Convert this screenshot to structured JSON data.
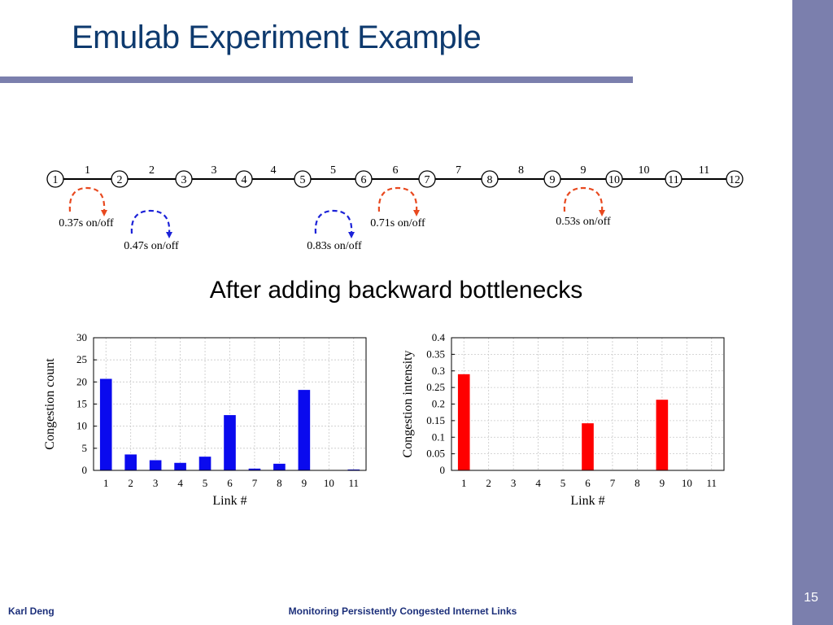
{
  "slide": {
    "title": "Emulab Experiment Example",
    "subtitle": "After adding backward bottlenecks",
    "footer_left": "Karl Deng",
    "footer_center": "Monitoring Persistently Congested Internet Links",
    "page_number": "15"
  },
  "topology": {
    "nodes": [
      "1",
      "2",
      "3",
      "4",
      "5",
      "6",
      "7",
      "8",
      "9",
      "10",
      "11",
      "12"
    ],
    "links": [
      "1",
      "2",
      "3",
      "4",
      "5",
      "6",
      "7",
      "8",
      "9",
      "10",
      "11"
    ],
    "flows": [
      {
        "label": "0.37s on/off",
        "on_link": 1,
        "color": "#e8491f"
      },
      {
        "label": "0.47s on/off",
        "on_link": 2,
        "color": "#1c22d8"
      },
      {
        "label": "0.83s on/off",
        "on_link": 5,
        "color": "#1c22d8"
      },
      {
        "label": "0.71s on/off",
        "on_link": 6,
        "color": "#e8491f"
      },
      {
        "label": "0.53s on/off",
        "on_link": 9,
        "color": "#e8491f"
      }
    ]
  },
  "chart_data": [
    {
      "type": "bar",
      "categories": [
        "1",
        "2",
        "3",
        "4",
        "5",
        "6",
        "7",
        "8",
        "9",
        "10",
        "11"
      ],
      "values": [
        20.7,
        3.6,
        2.3,
        1.7,
        3.1,
        12.5,
        0.4,
        1.5,
        18.2,
        0,
        0.2
      ],
      "xlabel": "Link #",
      "ylabel": "Congestion count",
      "ylim": [
        0,
        30
      ],
      "yticks": [
        "0",
        "5",
        "10",
        "15",
        "20",
        "25",
        "30"
      ],
      "grid": true,
      "color": "#0a0aee"
    },
    {
      "type": "bar",
      "categories": [
        "1",
        "2",
        "3",
        "4",
        "5",
        "6",
        "7",
        "8",
        "9",
        "10",
        "11"
      ],
      "values": [
        0.29,
        0,
        0,
        0,
        0,
        0.142,
        0,
        0,
        0.213,
        0,
        0
      ],
      "xlabel": "Link #",
      "ylabel": "Congestion intensity",
      "ylim": [
        0,
        0.4
      ],
      "yticks": [
        "0",
        "0.05",
        "0.1",
        "0.15",
        "0.2",
        "0.25",
        "0.3",
        "0.35",
        "0.4"
      ],
      "grid": true,
      "color": "#ff0000"
    }
  ]
}
